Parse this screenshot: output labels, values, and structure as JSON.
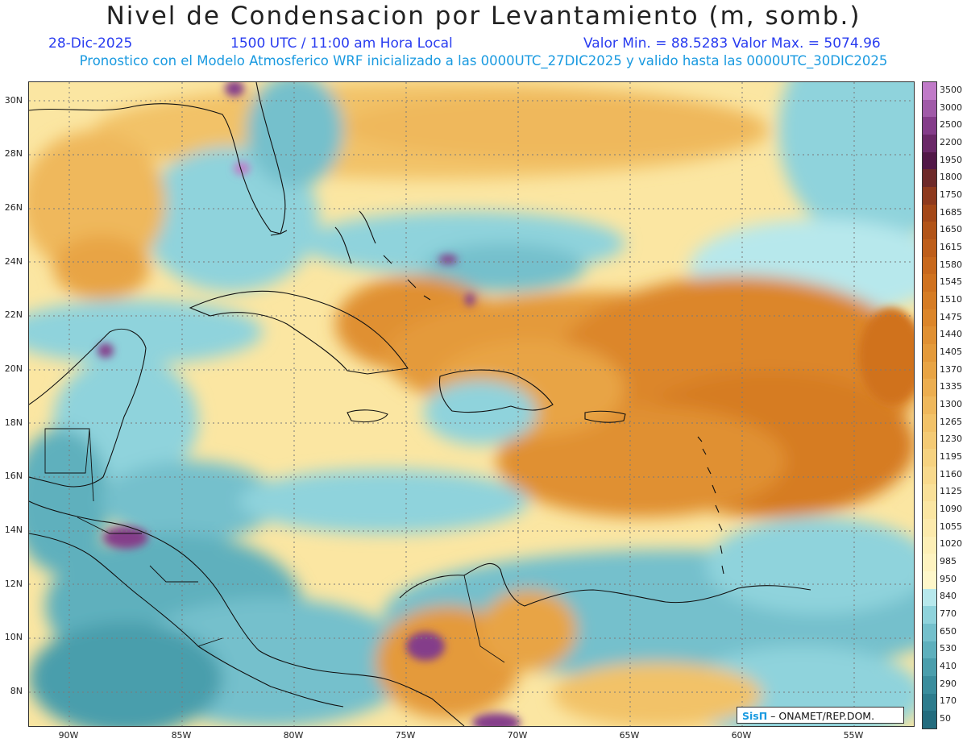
{
  "header": {
    "title": "Nivel de Condensacion por Levantamiento (m, somb.)",
    "date": "28-Dic-2025",
    "time": "1500 UTC / 11:00 am Hora Local",
    "minmax": "Valor Min. = 88.5283  Valor Max. = 5074.96",
    "model_info": "Pronostico con el Modelo Atmosferico WRF inicializado a las 0000UTC_27DIC2025 y valido hasta las  0000UTC_30DIC2025"
  },
  "map": {
    "lat_labels": [
      "30N",
      "28N",
      "26N",
      "24N",
      "22N",
      "20N",
      "18N",
      "16N",
      "14N",
      "12N",
      "10N",
      "8N"
    ],
    "lon_labels": [
      "90W",
      "85W",
      "80W",
      "75W",
      "70W",
      "65W",
      "60W",
      "55W"
    ]
  },
  "colorbar": {
    "labels": [
      "3500",
      "3000",
      "2500",
      "2200",
      "1950",
      "1800",
      "1750",
      "1685",
      "1650",
      "1615",
      "1580",
      "1545",
      "1510",
      "1475",
      "1440",
      "1405",
      "1370",
      "1335",
      "1300",
      "1265",
      "1230",
      "1195",
      "1160",
      "1125",
      "1090",
      "1055",
      "1020",
      "985",
      "950",
      "840",
      "770",
      "650",
      "530",
      "410",
      "290",
      "170",
      "50"
    ],
    "colors": [
      "#c07ac8",
      "#a05aa8",
      "#843c8a",
      "#6a2868",
      "#521848",
      "#6e2a2a",
      "#8e3a1e",
      "#a44818",
      "#b25418",
      "#be5e1a",
      "#c8681c",
      "#d0721f",
      "#d67c24",
      "#dc862a",
      "#e09032",
      "#e49a3a",
      "#e8a444",
      "#ecae50",
      "#efb85c",
      "#f2c268",
      "#f4ca74",
      "#f6d280",
      "#f8d98c",
      "#f9e098",
      "#fbe6a2",
      "#fceaac",
      "#fdefb6",
      "#fef3c0",
      "#fef7ca",
      "#b7e8ec",
      "#8fd3dc",
      "#74c0cc",
      "#5eb0bd",
      "#4a9eac",
      "#3a8d9d",
      "#2d7c8d",
      "#236c7e"
    ]
  },
  "credit": {
    "logo": "SisΠ",
    "text": " – ONAMET/REP.DOM."
  },
  "colors": {
    "low": "#5eb0bd",
    "mid": "#fef3c0",
    "high": "#dc862a",
    "max": "#6a2868"
  }
}
